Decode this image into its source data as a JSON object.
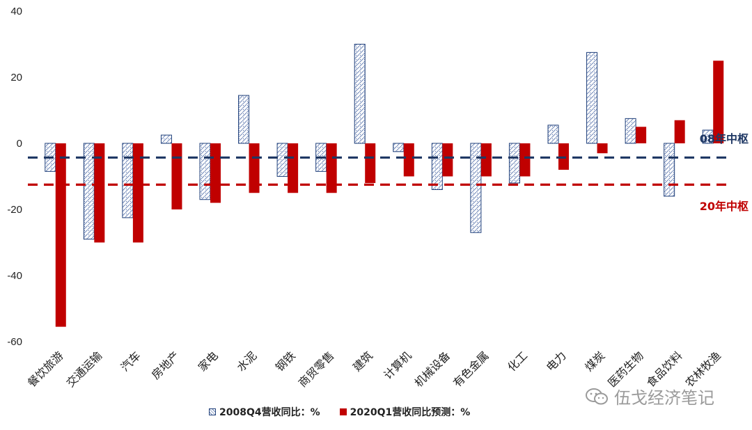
{
  "chart_data": {
    "type": "bar",
    "categories": [
      "餐饮旅游",
      "交通运输",
      "汽车",
      "房地产",
      "家电",
      "水泥",
      "钢铁",
      "商贸零售",
      "建筑",
      "计算机",
      "机械设备",
      "有色金属",
      "化工",
      "电力",
      "煤炭",
      "医药生物",
      "食品饮料",
      "农林牧渔"
    ],
    "series": [
      {
        "name": "2008Q4营收同比：%",
        "values": [
          -8.5,
          -29,
          -22.5,
          2.5,
          -17,
          14.5,
          -10,
          -8.5,
          30,
          -2.5,
          -14,
          -27,
          -12,
          5.5,
          27.5,
          7.5,
          -16,
          4
        ]
      },
      {
        "name": "2020Q1营收同比预测：%",
        "values": [
          -55.5,
          -30,
          -30,
          -20,
          -18,
          -15,
          -15,
          -15,
          -12,
          -10,
          -10,
          -10,
          -10,
          -8,
          -3,
          5,
          7,
          25
        ]
      }
    ],
    "ylim": [
      -60,
      40
    ],
    "yticks": [
      -60,
      -40,
      -20,
      0,
      20,
      40
    ],
    "reference_lines": [
      {
        "label": "08年中枢",
        "value": -4.3,
        "color": "#1f3864"
      },
      {
        "label": "20年中枢",
        "value": -12.5,
        "color": "#c00000"
      }
    ],
    "colors": {
      "series1_hatch": "#1f3f7a",
      "series2": "#c00000"
    },
    "legend_position": "bottom"
  },
  "watermark": {
    "text": "伍戈经济笔记",
    "icon": "wechat-icon"
  }
}
